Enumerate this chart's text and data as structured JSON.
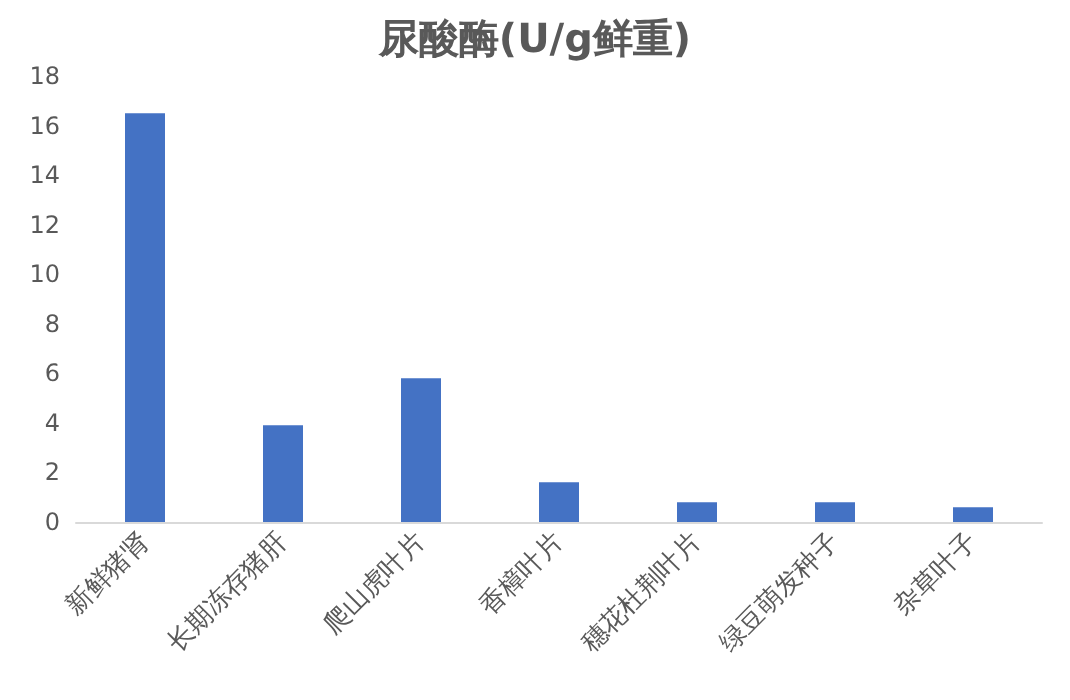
{
  "chart_data": {
    "type": "bar",
    "title": "尿酸酶(U/g鲜重)",
    "categories": [
      "新鲜猪肾",
      "长期冻存猪肝",
      "爬山虎叶片",
      "香樟叶片",
      "穗花杜荆叶片",
      "绿豆萌发种子",
      "杂草叶子"
    ],
    "values": [
      16.5,
      3.9,
      5.8,
      1.6,
      0.8,
      0.8,
      0.6
    ],
    "color": "#4472c4",
    "ylim": [
      0,
      18
    ],
    "yticks": [
      0,
      2,
      4,
      6,
      8,
      10,
      12,
      14,
      16,
      18
    ],
    "grid": false
  }
}
